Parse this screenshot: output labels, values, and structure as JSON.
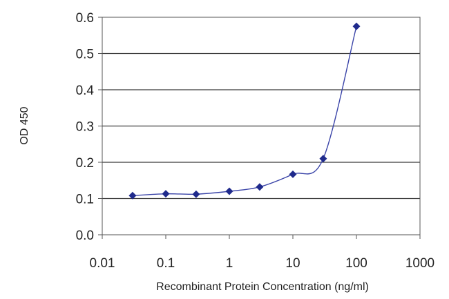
{
  "chart_data": {
    "type": "line",
    "title": "",
    "xlabel": "Recombinant Protein Concentration (ng/ml)",
    "ylabel": "OD 450",
    "x_scale": "log",
    "xlim": [
      0.01,
      1000
    ],
    "ylim": [
      0.0,
      0.6
    ],
    "x_ticks": [
      "0.01",
      "0.1",
      "1",
      "10",
      "100",
      "1000"
    ],
    "y_ticks": [
      "0.0",
      "0.1",
      "0.2",
      "0.3",
      "0.4",
      "0.5",
      "0.6"
    ],
    "grid": "horizontal",
    "legend": "none",
    "series": [
      {
        "color": "#1f2a8c",
        "marker": "diamond",
        "x": [
          0.03,
          0.1,
          0.3,
          1,
          3,
          10,
          30,
          100
        ],
        "y": [
          0.108,
          0.113,
          0.112,
          0.12,
          0.132,
          0.167,
          0.21,
          0.575
        ]
      }
    ]
  }
}
